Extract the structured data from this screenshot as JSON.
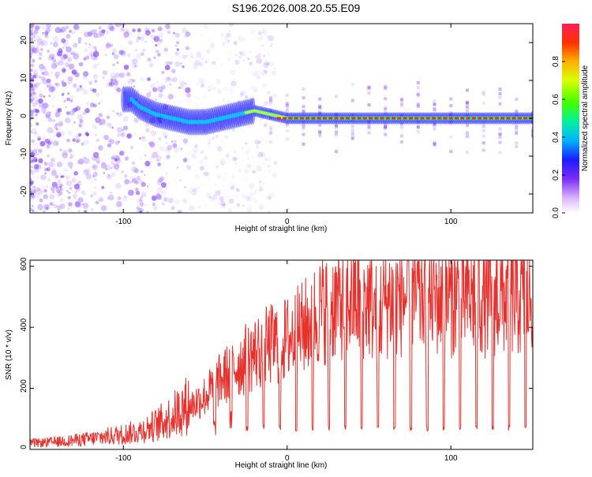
{
  "title": "S196.2026.008.20.55.E09",
  "colors": {
    "snr_line": "#e8312d",
    "spectrogram_low": "#8a2be2",
    "spectrogram_mid": "#00d0ff",
    "spectrogram_high": "#ff2020",
    "axis": "#000000",
    "background": "#ffffff"
  },
  "chart_data": [
    {
      "type": "heatmap",
      "name": "spectrogram",
      "xlabel": "Height of straight line (km)",
      "ylabel": "Frequency (Hz)",
      "xlim": [
        -157,
        150
      ],
      "ylim": [
        -25,
        25
      ],
      "xticks": [
        -100,
        0,
        100
      ],
      "yticks": [
        -20,
        -10,
        0,
        10,
        20
      ],
      "xtick_labels": [
        "-100",
        "0",
        "100"
      ],
      "ytick_labels": [
        "-20",
        "-10",
        "0",
        "10",
        "20"
      ],
      "grid": false,
      "description_points": [
        {
          "x": -95,
          "y": 5
        },
        {
          "x": -90,
          "y": 3
        },
        {
          "x": -80,
          "y": 1
        },
        {
          "x": -70,
          "y": 0
        },
        {
          "x": -60,
          "y": -1
        },
        {
          "x": -50,
          "y": -1
        },
        {
          "x": -40,
          "y": 0
        },
        {
          "x": -30,
          "y": 1
        },
        {
          "x": -20,
          "y": 2
        },
        {
          "x": -10,
          "y": 1
        },
        {
          "x": 0,
          "y": 0
        },
        {
          "x": 50,
          "y": 0
        },
        {
          "x": 100,
          "y": 0
        },
        {
          "x": 150,
          "y": 0
        }
      ]
    },
    {
      "type": "colorbar",
      "name": "amplitude-scale",
      "label": "Normalized spectral amplitude",
      "range": [
        0,
        1
      ],
      "ticks": [
        0.0,
        0.2,
        0.4,
        0.6,
        0.8
      ],
      "tick_labels": [
        "0.0",
        "0.2",
        "0.4",
        "0.6",
        "0.8"
      ]
    },
    {
      "type": "line",
      "name": "snr",
      "xlabel": "Height of straight line (km)",
      "ylabel": "SNR (10 * v/v)",
      "xlim": [
        -157,
        150
      ],
      "ylim": [
        0,
        620
      ],
      "xticks": [
        -100,
        0,
        100
      ],
      "yticks": [
        0,
        200,
        400,
        600
      ],
      "xtick_labels": [
        "-100",
        "0",
        "100"
      ],
      "ytick_labels": [
        "0",
        "200",
        "400",
        "600"
      ],
      "grid": false,
      "envelope": {
        "x": [
          -157,
          -140,
          -120,
          -100,
          -90,
          -80,
          -70,
          -60,
          -50,
          -40,
          -30,
          -20,
          -10,
          0,
          10,
          20,
          30,
          40,
          50,
          55,
          60,
          70,
          80,
          100,
          120,
          150
        ],
        "y": [
          20,
          25,
          35,
          50,
          60,
          80,
          110,
          150,
          190,
          250,
          300,
          340,
          370,
          390,
          430,
          490,
          520,
          530,
          525,
          470,
          530,
          540,
          540,
          540,
          540,
          540
        ]
      },
      "dips_start": 5,
      "dips_period": 10,
      "dip_floor": [
        60,
        80
      ]
    }
  ]
}
